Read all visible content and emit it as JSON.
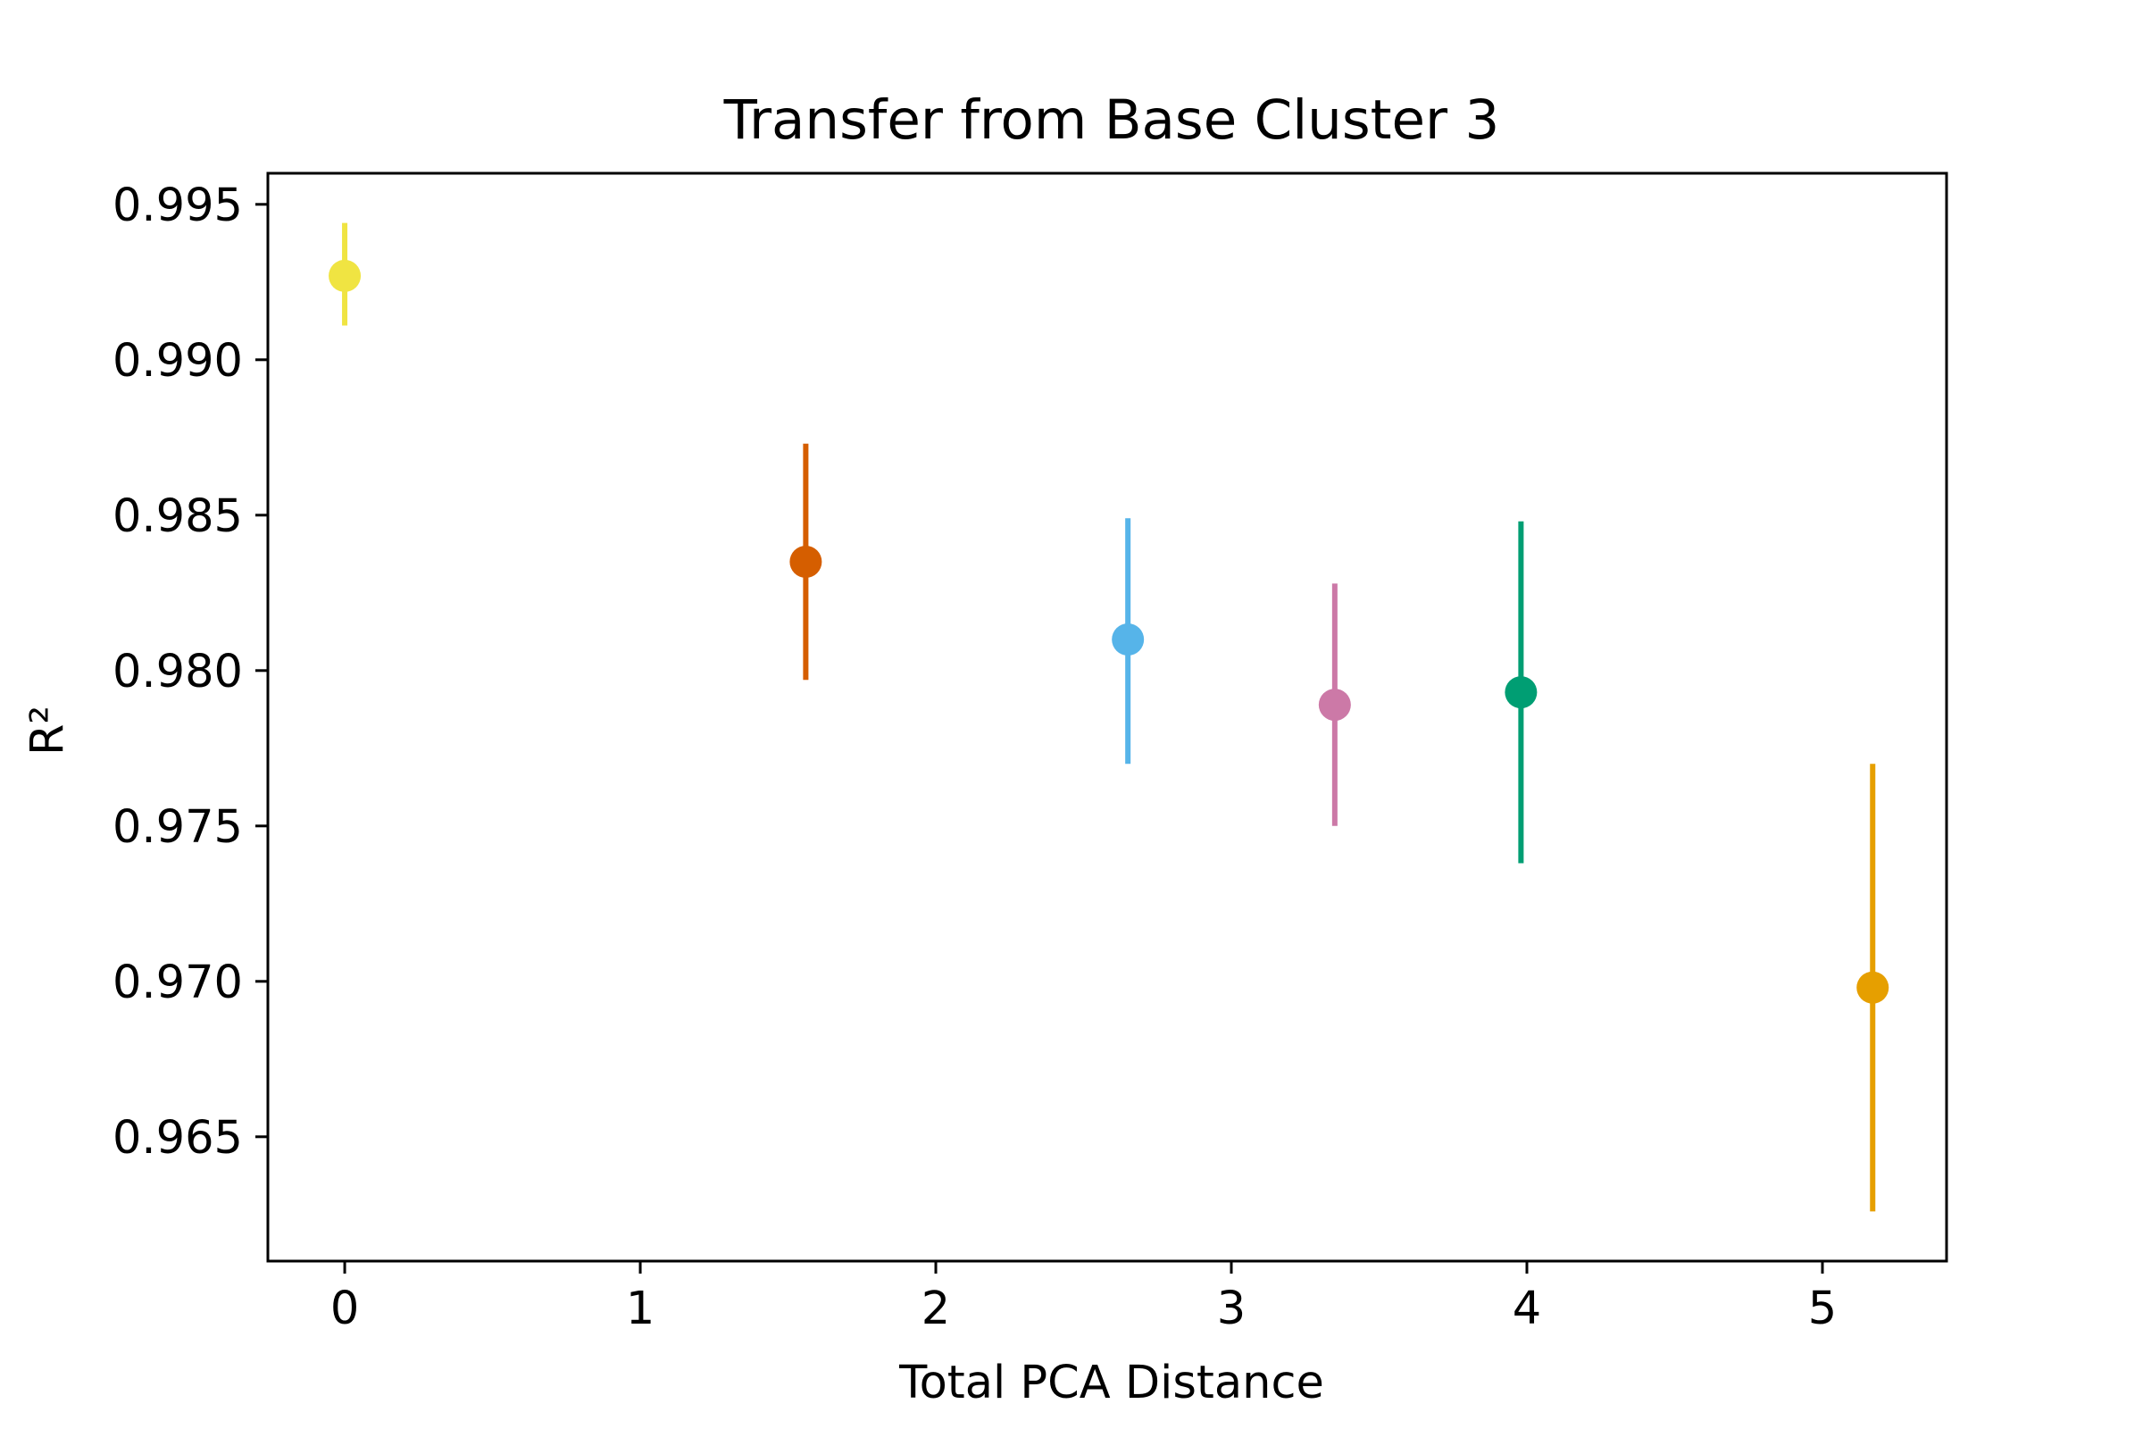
{
  "chart_data": {
    "type": "scatter",
    "title": "Transfer from Base Cluster 3",
    "xlabel": "Total PCA Distance",
    "ylabel": "R²",
    "xlim": [
      -0.26,
      5.42
    ],
    "ylim": [
      0.961,
      0.996
    ],
    "xticks": [
      "0",
      "1",
      "2",
      "3",
      "4",
      "5"
    ],
    "yticks": [
      "0.965",
      "0.970",
      "0.975",
      "0.980",
      "0.985",
      "0.990",
      "0.995"
    ],
    "grid": false,
    "points": [
      {
        "x": 0.0,
        "y": 0.9927,
        "err_low": 0.9911,
        "err_high": 0.9944,
        "color": "#f0e442"
      },
      {
        "x": 1.56,
        "y": 0.9835,
        "err_low": 0.9797,
        "err_high": 0.9873,
        "color": "#d55e00"
      },
      {
        "x": 2.65,
        "y": 0.981,
        "err_low": 0.977,
        "err_high": 0.9849,
        "color": "#56b4e9"
      },
      {
        "x": 3.35,
        "y": 0.9789,
        "err_low": 0.975,
        "err_high": 0.9828,
        "color": "#cc79a7"
      },
      {
        "x": 3.98,
        "y": 0.9793,
        "err_low": 0.9738,
        "err_high": 0.9848,
        "color": "#009e73"
      },
      {
        "x": 5.17,
        "y": 0.9698,
        "err_low": 0.9626,
        "err_high": 0.977,
        "color": "#e69f00"
      }
    ]
  }
}
